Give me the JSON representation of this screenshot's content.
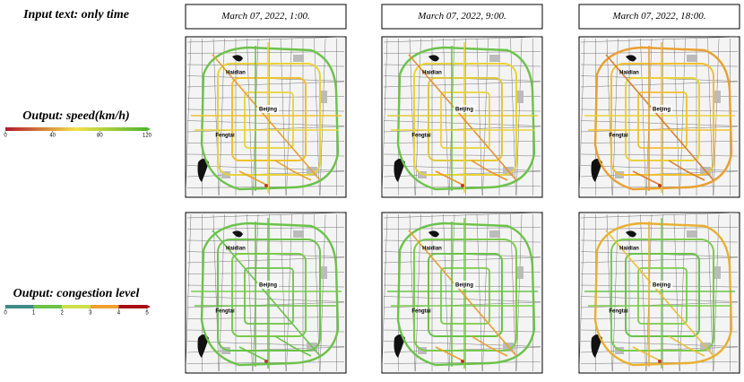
{
  "header": {
    "input_label": "Input text: only time"
  },
  "columns": [
    "March 07, 2022, 1:00.",
    "March 07, 2022, 9:00.",
    "March 07, 2022, 18:00."
  ],
  "legends": [
    {
      "title": "Output: speed(km/h)",
      "ticks": [
        0,
        40,
        80,
        120
      ],
      "range": [
        0,
        120
      ],
      "colors": [
        "#b2182b",
        "#f2e24a",
        "#4fb52e"
      ]
    },
    {
      "title": "Output: congestion level",
      "ticks": [
        0,
        1,
        2,
        3,
        4,
        5
      ],
      "range": [
        0,
        5
      ],
      "colors": [
        "#3f8a86",
        "#6cc24a",
        "#cfe04a",
        "#f0a030",
        "#a50f15"
      ]
    }
  ],
  "map_labels": [
    "Beijing",
    "Haidian",
    "Fengtai"
  ]
}
